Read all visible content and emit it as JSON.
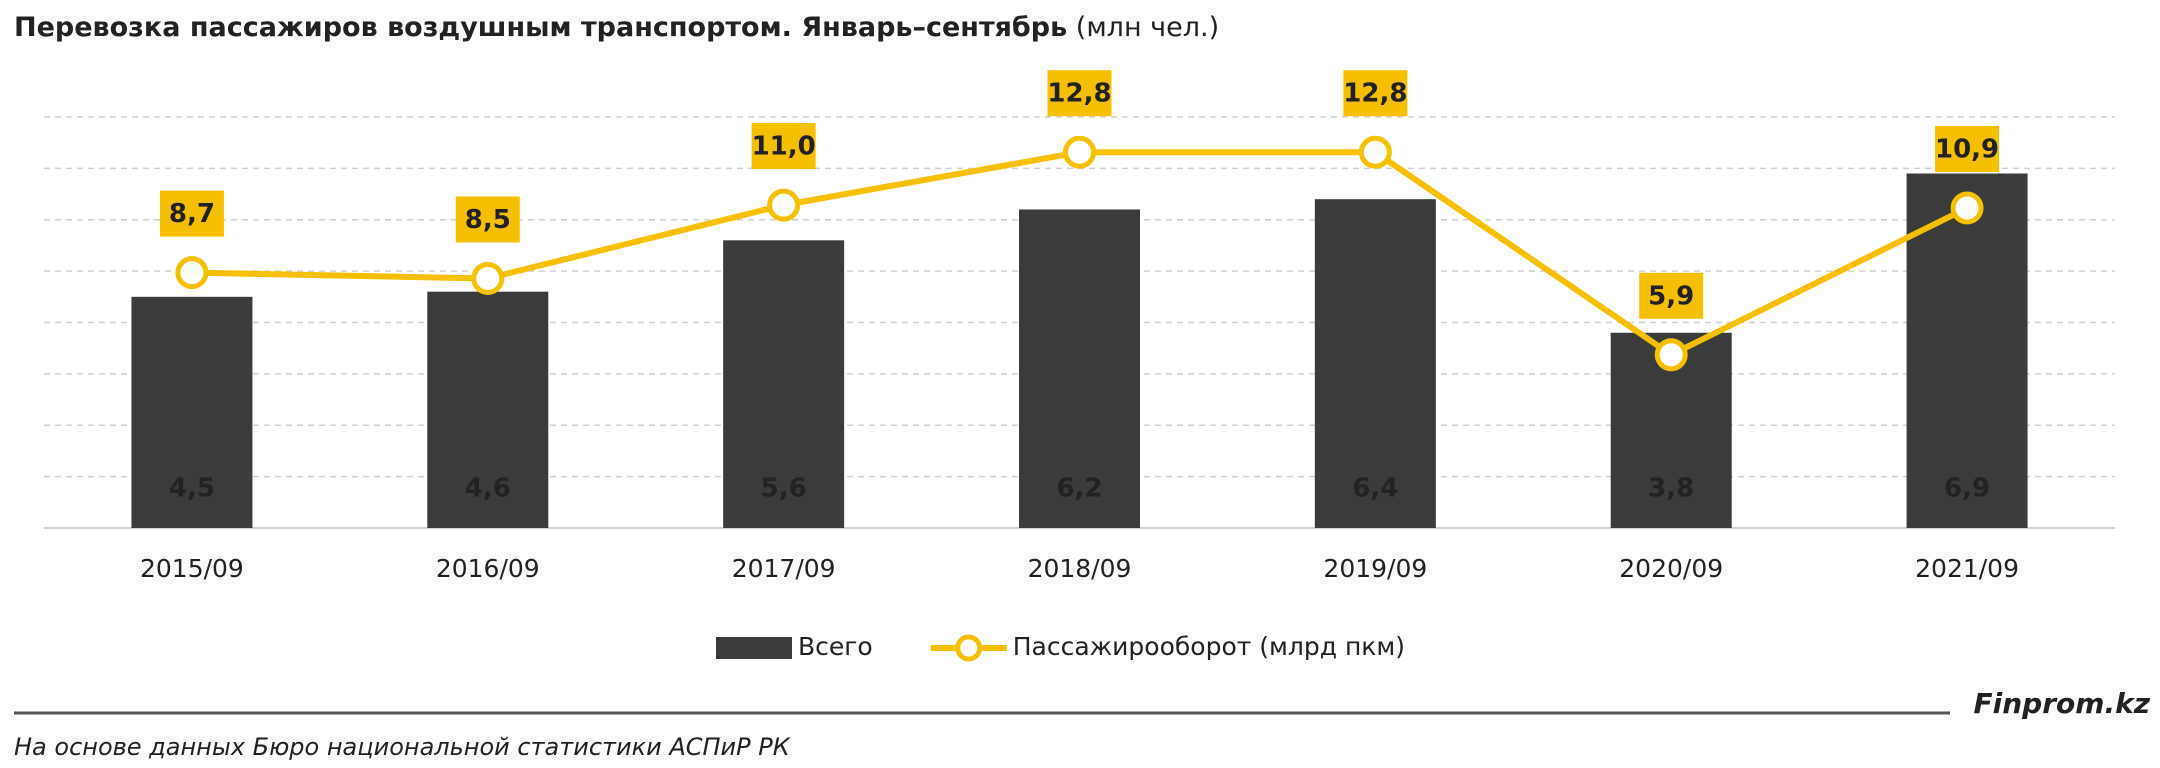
{
  "chart_data": {
    "type": "bar-line",
    "title": "Перевозка пассажиров воздушным транспортом. Январь–сентябрь",
    "title_unit": "(млн чел.)",
    "categories": [
      "2015/09",
      "2016/09",
      "2017/09",
      "2018/09",
      "2019/09",
      "2020/09",
      "2021/09"
    ],
    "series": [
      {
        "name": "Всего",
        "type": "bar",
        "color": "#3b3b3b",
        "values": [
          4.5,
          4.6,
          5.6,
          6.2,
          6.4,
          3.8,
          6.9
        ],
        "value_labels": [
          "4,5",
          "4,6",
          "5,6",
          "6,2",
          "6,4",
          "3,8",
          "6,9"
        ]
      },
      {
        "name": "Пассажирооборот (млрд пкм)",
        "type": "line",
        "axis": "y2",
        "color": "#f5c000",
        "values": [
          8.7,
          8.5,
          11.0,
          12.8,
          12.8,
          5.9,
          10.9
        ],
        "value_labels": [
          "8,7",
          "8,5",
          "11,0",
          "12,8",
          "12,8",
          "5,9",
          "10,9"
        ]
      }
    ],
    "ylim": [
      0,
      8
    ],
    "yticks": [
      1,
      2,
      3,
      4,
      5,
      6,
      7,
      8
    ],
    "y2lim": [
      0,
      14
    ],
    "grid": true,
    "source": "На основе данных Бюро национальной статистики АСПиР РК",
    "brand": "Finprom.kz"
  }
}
